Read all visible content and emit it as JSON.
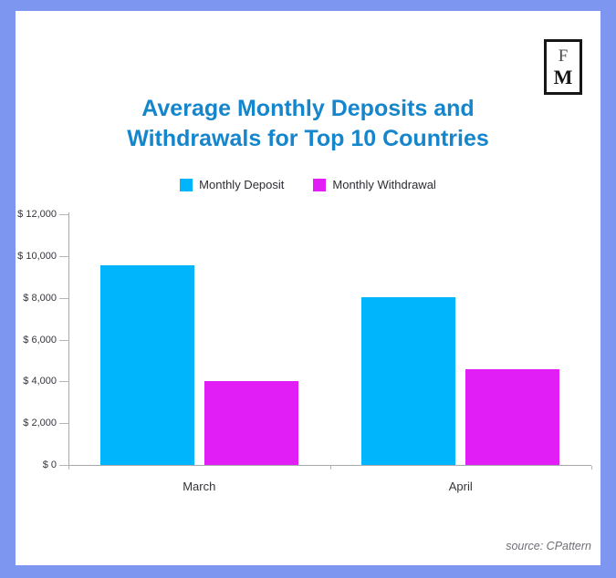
{
  "colors": {
    "frame": "#7D97F0",
    "card": "#FFFFFF",
    "title": "#1585CC",
    "deposit": "#00B5FB",
    "withdrawal": "#E01EF5",
    "axis": "#A9A9AE",
    "label_text": "#35353C",
    "source_text": "#6E6E76",
    "logo_border": "#161616"
  },
  "logo": {
    "letter_top": "F",
    "letter_bottom": "M"
  },
  "title": {
    "line1": "Average Monthly Deposits and",
    "line2": "Withdrawals for Top 10 Countries"
  },
  "source_text": "source: CPattern",
  "chart_data": {
    "type": "bar",
    "title": "Average Monthly Deposits and Withdrawals for Top 10 Countries",
    "categories": [
      "March",
      "April"
    ],
    "series": [
      {
        "name": "Monthly Deposit",
        "color": "#00B5FB",
        "values": [
          9550,
          8050
        ]
      },
      {
        "name": "Monthly Withdrawal",
        "color": "#E01EF5",
        "values": [
          4000,
          4600
        ]
      }
    ],
    "ylim": [
      0,
      12000
    ],
    "y_ticks": [
      0,
      2000,
      4000,
      6000,
      8000,
      10000,
      12000
    ],
    "y_tick_labels": [
      "$ 0",
      "$ 2,000",
      "$ 4,000",
      "$ 6,000",
      "$ 8,000",
      "$ 10,000",
      "$ 12,000"
    ],
    "xlabel": "",
    "ylabel": "",
    "grid": false,
    "legend_position": "top"
  }
}
